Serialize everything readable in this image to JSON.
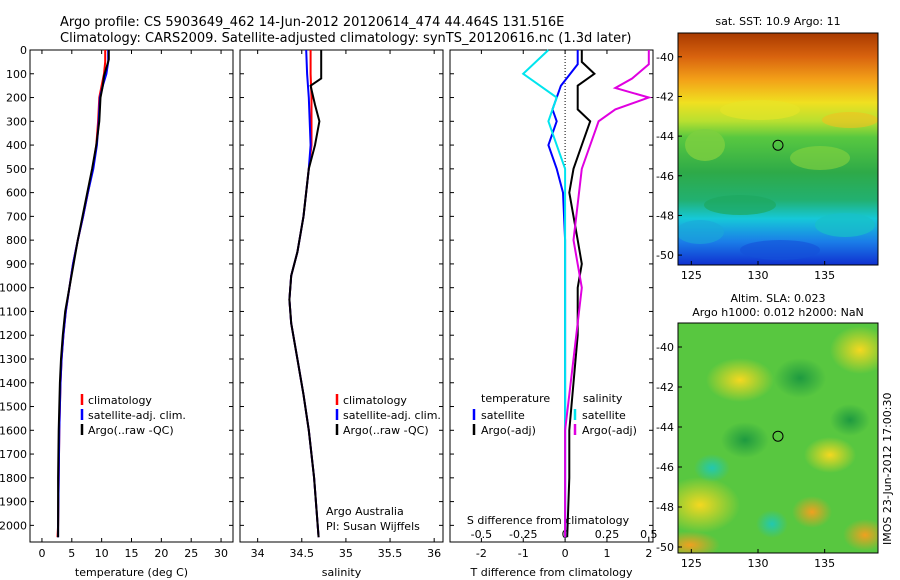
{
  "header": {
    "line1": "Argo profile: CS 5903649_462 14-Jun-2012 20120614_474 44.464S 131.516E",
    "line2": "Climatology: CARS2009. Satellite-adjusted climatology: synTS_20120616.nc (1.3d later)"
  },
  "colors": {
    "climatology": "#ff0000",
    "satellite": "#0000ff",
    "argo": "#000000",
    "sal_satellite": "#00e5ee",
    "sal_argo": "#e000e0"
  },
  "chart_data": [
    {
      "type": "line",
      "name": "temperature",
      "xlabel": "temperature (deg C)",
      "ylabel": "",
      "xlim": [
        -2,
        32
      ],
      "ylim": [
        2070,
        0
      ],
      "xticks": [
        0,
        5,
        10,
        15,
        20,
        25,
        30
      ],
      "yticks": [
        0,
        100,
        200,
        300,
        400,
        500,
        600,
        700,
        800,
        900,
        1000,
        1100,
        1200,
        1300,
        1400,
        1500,
        1600,
        1700,
        1800,
        1900,
        2000
      ],
      "legend": [
        "climatology",
        "satellite-adj. clim.",
        "Argo(..raw -QC)"
      ],
      "series": [
        {
          "name": "climatology",
          "points": [
            [
              10.6,
              0
            ],
            [
              10.6,
              50
            ],
            [
              10.4,
              100
            ],
            [
              10.0,
              150
            ],
            [
              9.6,
              200
            ],
            [
              9.4,
              300
            ],
            [
              9.1,
              400
            ],
            [
              8.5,
              500
            ],
            [
              7.7,
              600
            ],
            [
              6.9,
              700
            ],
            [
              6.0,
              800
            ],
            [
              5.2,
              900
            ],
            [
              4.6,
              1000
            ],
            [
              4.0,
              1100
            ],
            [
              3.6,
              1200
            ],
            [
              3.3,
              1300
            ],
            [
              3.1,
              1400
            ],
            [
              2.9,
              1600
            ],
            [
              2.8,
              1800
            ],
            [
              2.7,
              2000
            ],
            [
              2.6,
              2050
            ]
          ]
        },
        {
          "name": "satellite-adj. clim.",
          "points": [
            [
              11.1,
              0
            ],
            [
              11.1,
              50
            ],
            [
              10.8,
              100
            ],
            [
              10.2,
              150
            ],
            [
              9.7,
              200
            ],
            [
              9.5,
              300
            ],
            [
              9.2,
              400
            ],
            [
              8.6,
              500
            ],
            [
              7.7,
              600
            ],
            [
              6.9,
              700
            ],
            [
              6.0,
              800
            ],
            [
              5.2,
              900
            ],
            [
              4.6,
              1000
            ],
            [
              4.0,
              1100
            ],
            [
              3.6,
              1200
            ],
            [
              3.3,
              1300
            ],
            [
              3.1,
              1400
            ],
            [
              2.9,
              1600
            ],
            [
              2.8,
              1800
            ],
            [
              2.7,
              2000
            ],
            [
              2.7,
              2050
            ]
          ]
        },
        {
          "name": "Argo(..raw -QC)",
          "points": [
            [
              11.2,
              0
            ],
            [
              11.2,
              40
            ],
            [
              10.4,
              110
            ],
            [
              10.2,
              150
            ],
            [
              9.8,
              200
            ],
            [
              9.6,
              300
            ],
            [
              9.1,
              400
            ],
            [
              8.4,
              500
            ],
            [
              7.6,
              600
            ],
            [
              6.8,
              700
            ],
            [
              6.0,
              800
            ],
            [
              5.3,
              900
            ],
            [
              4.6,
              1000
            ],
            [
              3.9,
              1100
            ],
            [
              3.5,
              1200
            ],
            [
              3.2,
              1300
            ],
            [
              3.0,
              1400
            ],
            [
              2.8,
              1600
            ],
            [
              2.7,
              1800
            ],
            [
              2.7,
              2000
            ],
            [
              2.7,
              2050
            ]
          ]
        }
      ]
    },
    {
      "type": "line",
      "name": "salinity",
      "xlabel": "salinity",
      "xlim": [
        33.8,
        36.1
      ],
      "ylim": [
        2070,
        0
      ],
      "xticks": [
        34,
        34.5,
        35,
        35.5,
        36
      ],
      "legend": [
        "climatology",
        "satellite-adj. clim.",
        "Argo(..raw -QC)"
      ],
      "annotation": [
        "Argo Australia",
        "PI: Susan Wijffels"
      ],
      "series": [
        {
          "name": "climatology",
          "points": [
            [
              34.6,
              0
            ],
            [
              34.6,
              100
            ],
            [
              34.61,
              200
            ],
            [
              34.61,
              400
            ],
            [
              34.58,
              500
            ],
            [
              34.52,
              700
            ],
            [
              34.45,
              850
            ],
            [
              34.38,
              950
            ],
            [
              34.36,
              1050
            ],
            [
              34.38,
              1150
            ],
            [
              34.45,
              1300
            ],
            [
              34.52,
              1450
            ],
            [
              34.58,
              1600
            ],
            [
              34.64,
              1800
            ],
            [
              34.68,
              2000
            ],
            [
              34.69,
              2050
            ]
          ]
        },
        {
          "name": "satellite-adj. clim.",
          "points": [
            [
              34.55,
              0
            ],
            [
              34.56,
              100
            ],
            [
              34.58,
              200
            ],
            [
              34.6,
              400
            ],
            [
              34.58,
              500
            ],
            [
              34.52,
              700
            ],
            [
              34.45,
              850
            ],
            [
              34.38,
              950
            ],
            [
              34.36,
              1050
            ],
            [
              34.38,
              1150
            ],
            [
              34.45,
              1300
            ],
            [
              34.52,
              1450
            ],
            [
              34.58,
              1600
            ],
            [
              34.64,
              1800
            ],
            [
              34.68,
              2000
            ],
            [
              34.69,
              2050
            ]
          ]
        },
        {
          "name": "Argo(..raw -QC)",
          "points": [
            [
              34.72,
              0
            ],
            [
              34.72,
              120
            ],
            [
              34.6,
              150
            ],
            [
              34.65,
              230
            ],
            [
              34.7,
              300
            ],
            [
              34.65,
              400
            ],
            [
              34.58,
              500
            ],
            [
              34.52,
              700
            ],
            [
              34.45,
              850
            ],
            [
              34.38,
              950
            ],
            [
              34.36,
              1050
            ],
            [
              34.38,
              1150
            ],
            [
              34.45,
              1300
            ],
            [
              34.52,
              1450
            ],
            [
              34.58,
              1600
            ],
            [
              34.64,
              1800
            ],
            [
              34.68,
              2000
            ],
            [
              34.69,
              2050
            ]
          ]
        }
      ]
    },
    {
      "type": "line",
      "name": "difference",
      "xlabel": "T difference from climatology",
      "top_label": "S difference from climatology",
      "xlim": [
        -2.75,
        2.1
      ],
      "ylim": [
        2070,
        0
      ],
      "xticks": [
        -2,
        -1,
        0,
        1,
        2
      ],
      "s_ticks": [
        "-0.5",
        "-0.25",
        "0",
        "0.25",
        "0.5"
      ],
      "legend_left": {
        "title": "temperature",
        "items": [
          "satellite",
          "Argo(-adj)"
        ]
      },
      "legend_right": {
        "title": "salinity",
        "items": [
          "satellite",
          "Argo(-adj)"
        ]
      },
      "series": [
        {
          "name": "T satellite",
          "points": [
            [
              0.3,
              0
            ],
            [
              0.3,
              60
            ],
            [
              -0.1,
              150
            ],
            [
              -0.3,
              250
            ],
            [
              -0.2,
              300
            ],
            [
              -0.4,
              400
            ],
            [
              -0.2,
              500
            ],
            [
              -0.05,
              600
            ],
            [
              0,
              800
            ],
            [
              0,
              1000
            ],
            [
              0,
              1400
            ],
            [
              0,
              2050
            ]
          ]
        },
        {
          "name": "T Argo(-adj)",
          "points": [
            [
              0.4,
              0
            ],
            [
              0.4,
              50
            ],
            [
              0.7,
              100
            ],
            [
              0.3,
              150
            ],
            [
              0.3,
              250
            ],
            [
              0.6,
              300
            ],
            [
              0.4,
              400
            ],
            [
              0.2,
              500
            ],
            [
              0.1,
              600
            ],
            [
              0.3,
              800
            ],
            [
              0.4,
              900
            ],
            [
              0.3,
              1000
            ],
            [
              0.3,
              1200
            ],
            [
              0.2,
              1400
            ],
            [
              0.1,
              1600
            ],
            [
              0.1,
              1800
            ],
            [
              0.05,
              2050
            ]
          ]
        },
        {
          "name": "S satellite",
          "points": [
            [
              -0.1,
              0
            ],
            [
              -0.25,
              100
            ],
            [
              -0.05,
              200
            ],
            [
              -0.1,
              300
            ],
            [
              -0.05,
              400
            ],
            [
              0,
              500
            ],
            [
              0,
              1000
            ],
            [
              0,
              1400
            ],
            [
              0,
              2050
            ]
          ]
        },
        {
          "name": "S Argo(-adj)",
          "points": [
            [
              0.5,
              0
            ],
            [
              0.5,
              60
            ],
            [
              0.4,
              120
            ],
            [
              0.3,
              160
            ],
            [
              0.5,
              200
            ],
            [
              0.3,
              250
            ],
            [
              0.2,
              300
            ],
            [
              0.15,
              400
            ],
            [
              0.1,
              500
            ],
            [
              0.05,
              800
            ],
            [
              0.1,
              1000
            ],
            [
              0.05,
              1300
            ],
            [
              0,
              1600
            ],
            [
              0,
              2050
            ]
          ]
        }
      ]
    },
    {
      "type": "heatmap",
      "name": "sst-map",
      "title": "sat. SST: 10.9 Argo: 11",
      "xticks": [
        125,
        130,
        135
      ],
      "yticks": [
        -40,
        -42,
        -44,
        -46,
        -48,
        -50
      ],
      "xlim": [
        124,
        139
      ],
      "ylim": [
        -50.5,
        -38.8
      ],
      "marker": [
        131.5,
        -44.46
      ]
    },
    {
      "type": "heatmap",
      "name": "sla-map",
      "title_line1": "Altim. SLA: 0.023",
      "title_line2": "Argo h1000: 0.012 h2000: NaN",
      "xticks": [
        125,
        130,
        135
      ],
      "yticks": [
        -40,
        -42,
        -44,
        -46,
        -48,
        -50
      ],
      "xlim": [
        124,
        139
      ],
      "ylim": [
        -50.3,
        -38.8
      ],
      "marker": [
        131.5,
        -44.46
      ]
    }
  ],
  "stamp": "IMOS 23-Jun-2012 17:00:30"
}
